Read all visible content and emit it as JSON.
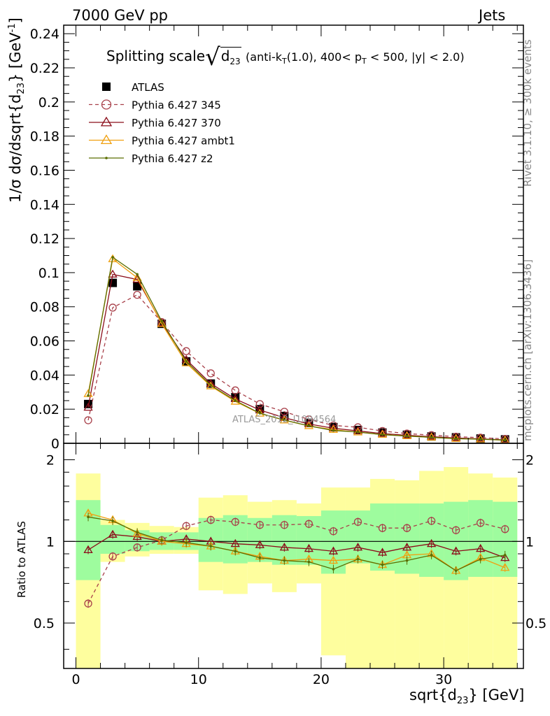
{
  "header": {
    "left": "7000 GeV pp",
    "right": "Jets"
  },
  "side_labels": {
    "rivet": "Rivet 3.1.10, ≥ 300k events",
    "mcplots": "mcplots.cern.ch [arXiv:1306.3436]"
  },
  "chart_data": [
    {
      "type": "line",
      "title_main": "Splitting scale",
      "title_sqrt": "d",
      "title_sqrt_sub": "23",
      "title_rest": "(anti-k",
      "title_rest_sub": "T",
      "title_rest2": "(1.0), 400< p",
      "title_rest2_sub": "T",
      "title_rest3": " < 500, |y| < 2.0)",
      "watermark": "ATLAS_2012_I1094564",
      "ylabel_a": "1/σ dσ/dsqrt{d",
      "ylabel_sub": "23",
      "ylabel_b": "} [GeV",
      "ylabel_sup": "-1",
      "ylabel_c": "]",
      "xlim": [
        -1,
        36.5
      ],
      "ylim": [
        0,
        0.245
      ],
      "yticks": [
        "0",
        "0.02",
        "0.04",
        "0.06",
        "0.08",
        "0.1",
        "0.12",
        "0.14",
        "0.16",
        "0.18",
        "0.2",
        "0.22",
        "0.24"
      ],
      "x": [
        1,
        3,
        5,
        7,
        9,
        11,
        13,
        15,
        17,
        19,
        21,
        23,
        25,
        27,
        29,
        31,
        33,
        35
      ],
      "series": [
        {
          "name": "ATLAS",
          "marker": "square",
          "color": "#000000",
          "values": [
            0.023,
            0.094,
            0.092,
            0.07,
            0.048,
            0.035,
            0.027,
            0.02,
            0.016,
            0.012,
            0.0095,
            0.0078,
            0.0063,
            0.005,
            0.004,
            0.0035,
            0.0028,
            0.0023
          ]
        },
        {
          "name": "Pythia 6.427 345",
          "marker": "circle",
          "dash": true,
          "color": "#a8404a",
          "values": [
            0.0135,
            0.0795,
            0.087,
            0.071,
            0.054,
            0.041,
            0.031,
            0.023,
            0.0185,
            0.014,
            0.0105,
            0.0094,
            0.0072,
            0.0057,
            0.0048,
            0.0039,
            0.0033,
            0.0026
          ]
        },
        {
          "name": "Pythia 6.427 370",
          "marker": "triangle",
          "color": "#8b0d1a",
          "values": [
            0.021,
            0.099,
            0.096,
            0.0705,
            0.049,
            0.035,
            0.026,
            0.0195,
            0.015,
            0.0113,
            0.0088,
            0.0073,
            0.0057,
            0.0047,
            0.0039,
            0.0031,
            0.0026,
            0.002
          ]
        },
        {
          "name": "Pythia 6.427 ambt1",
          "marker": "triangle",
          "color": "#f0a010",
          "values": [
            0.029,
            0.108,
            0.097,
            0.07,
            0.047,
            0.0335,
            0.0245,
            0.0175,
            0.0135,
            0.0102,
            0.008,
            0.0065,
            0.0051,
            0.0043,
            0.0035,
            0.0027,
            0.0024,
            0.0018
          ]
        },
        {
          "name": "Pythia 6.427 z2",
          "marker": "dot",
          "color": "#5a6e00",
          "values": [
            0.028,
            0.109,
            0.099,
            0.0715,
            0.048,
            0.034,
            0.025,
            0.0176,
            0.0136,
            0.0102,
            0.0075,
            0.0066,
            0.0051,
            0.0042,
            0.0035,
            0.0027,
            0.0024,
            0.0019
          ]
        }
      ]
    },
    {
      "type": "line",
      "ylabel": "Ratio to ATLAS",
      "xlabel_a": "sqrt{d",
      "xlabel_sub": "23",
      "xlabel_b": "} [GeV]",
      "xlim": [
        -1,
        36.5
      ],
      "ylim": [
        0.34,
        2.3
      ],
      "log_y": true,
      "yticks": [
        "0.5",
        "1",
        "2"
      ],
      "xticks": [
        "0",
        "10",
        "20",
        "30"
      ],
      "x": [
        1,
        3,
        5,
        7,
        9,
        11,
        13,
        15,
        17,
        19,
        21,
        23,
        25,
        27,
        29,
        31,
        33,
        35
      ],
      "band_inner": {
        "color": "#9efc9e",
        "lo": [
          0.72,
          0.9,
          0.92,
          0.93,
          0.93,
          0.84,
          0.83,
          0.84,
          0.82,
          0.82,
          0.76,
          0.83,
          0.78,
          0.76,
          0.74,
          0.72,
          0.74,
          0.74
        ],
        "hi": [
          1.42,
          1.15,
          1.1,
          1.08,
          1.08,
          1.22,
          1.25,
          1.22,
          1.25,
          1.24,
          1.3,
          1.3,
          1.38,
          1.38,
          1.38,
          1.4,
          1.42,
          1.4
        ]
      },
      "band_outer": {
        "color": "#fefe9e",
        "lo": [
          0.34,
          0.84,
          0.88,
          0.9,
          0.9,
          0.66,
          0.64,
          0.7,
          0.65,
          0.7,
          0.38,
          0.34,
          0.34,
          0.34,
          0.34,
          0.34,
          0.34,
          0.34
        ],
        "hi": [
          1.78,
          1.2,
          1.17,
          1.14,
          1.13,
          1.45,
          1.48,
          1.4,
          1.42,
          1.38,
          1.58,
          1.58,
          1.7,
          1.68,
          1.82,
          1.88,
          1.78,
          1.72
        ]
      },
      "series": [
        {
          "name": "Pythia 6.427 345",
          "values": [
            0.59,
            0.88,
            0.95,
            1.01,
            1.14,
            1.2,
            1.18,
            1.15,
            1.15,
            1.16,
            1.09,
            1.18,
            1.12,
            1.12,
            1.19,
            1.1,
            1.17,
            1.11
          ]
        },
        {
          "name": "Pythia 6.427 370",
          "values": [
            0.93,
            1.06,
            1.04,
            1.0,
            1.02,
            1.0,
            0.98,
            0.97,
            0.95,
            0.94,
            0.92,
            0.95,
            0.91,
            0.95,
            0.98,
            0.92,
            0.94,
            0.87
          ]
        },
        {
          "name": "Pythia 6.427 ambt1",
          "values": [
            1.27,
            1.2,
            1.07,
            1.0,
            0.98,
            0.96,
            0.92,
            0.88,
            0.85,
            0.86,
            0.85,
            0.86,
            0.82,
            0.89,
            0.9,
            0.78,
            0.87,
            0.8
          ]
        },
        {
          "name": "Pythia 6.427 z2",
          "values": [
            1.23,
            1.19,
            1.08,
            1.01,
            0.99,
            0.96,
            0.92,
            0.87,
            0.85,
            0.84,
            0.79,
            0.86,
            0.82,
            0.85,
            0.89,
            0.78,
            0.86,
            0.89
          ]
        }
      ]
    }
  ]
}
